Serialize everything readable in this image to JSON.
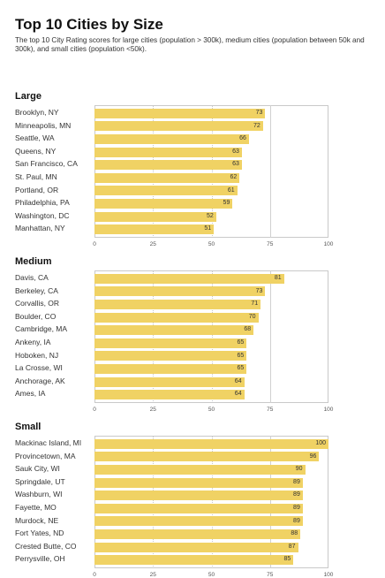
{
  "title": "Top 10 Cities by Size",
  "subtitle": "The top 10 City Rating scores for large cities (population > 300k), medium cities (population between 50k and 300k), and small cities (population <50k).",
  "chart_data": [
    {
      "type": "bar",
      "orientation": "horizontal",
      "title": "Large",
      "categories": [
        "Brooklyn, NY",
        "Minneapolis, MN",
        "Seattle, WA",
        "Queens, NY",
        "San Francisco, CA",
        "St. Paul, MN",
        "Portland, OR",
        "Philadelphia, PA",
        "Washington, DC",
        "Manhattan, NY"
      ],
      "values": [
        73,
        72,
        66,
        63,
        63,
        62,
        61,
        59,
        52,
        51
      ],
      "xlim": [
        0,
        100
      ],
      "xticks": [
        0,
        25,
        50,
        75,
        100
      ],
      "bar_color": "#f0d264"
    },
    {
      "type": "bar",
      "orientation": "horizontal",
      "title": "Medium",
      "categories": [
        "Davis, CA",
        "Berkeley, CA",
        "Corvallis, OR",
        "Boulder, CO",
        "Cambridge, MA",
        "Ankeny, IA",
        "Hoboken, NJ",
        "La Crosse, WI",
        "Anchorage, AK",
        "Ames, IA"
      ],
      "values": [
        81,
        73,
        71,
        70,
        68,
        65,
        65,
        65,
        64,
        64
      ],
      "xlim": [
        0,
        100
      ],
      "xticks": [
        0,
        25,
        50,
        75,
        100
      ],
      "bar_color": "#f0d264"
    },
    {
      "type": "bar",
      "orientation": "horizontal",
      "title": "Small",
      "categories": [
        "Mackinac Island, MI",
        "Provincetown, MA",
        "Sauk City, WI",
        "Springdale, UT",
        "Washburn, WI",
        "Fayette, MO",
        "Murdock, NE",
        "Fort Yates, ND",
        "Crested Butte, CO",
        "Perrysville, OH"
      ],
      "values": [
        100,
        96,
        90,
        89,
        89,
        89,
        89,
        88,
        87,
        85
      ],
      "xlim": [
        0,
        100
      ],
      "xticks": [
        0,
        25,
        50,
        75,
        100
      ],
      "bar_color": "#f0d264"
    }
  ]
}
